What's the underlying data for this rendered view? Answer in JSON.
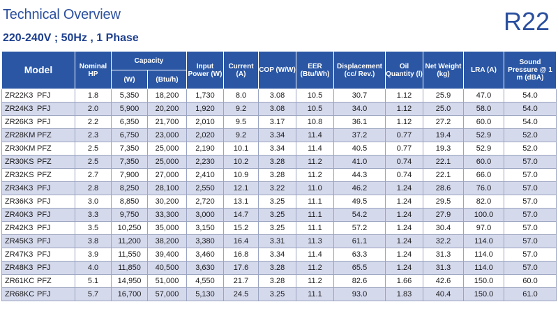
{
  "header": {
    "title": "Technical Overview",
    "subtitle": "220-240V ; 50Hz , 1 Phase",
    "badge": "R22"
  },
  "table": {
    "columns": {
      "model": "Model",
      "hp": "Nominal HP",
      "capacity": "Capacity",
      "capacity_w": "(W)",
      "capacity_btu": "(Btu/h)",
      "input_power": "Input Power (W)",
      "current": "Current (A)",
      "cop": "COP (W/W)",
      "eer": "EER (Btu/Wh)",
      "displacement": "Displacement (cc/ Rev.)",
      "oil": "Oil Quantity (l)",
      "weight": "Net Weight (kg)",
      "lra": "LRA (A)",
      "sound": "Sound Pressure @ 1 m (dBA)"
    },
    "rows": [
      {
        "model": "ZR22K3",
        "suffix": "PFJ",
        "hp": "1.8",
        "cap_w": "5,350",
        "cap_btu": "18,200",
        "power": "1,730",
        "current": "8.0",
        "cop": "3.08",
        "eer": "10.5",
        "disp": "30.7",
        "oil": "1.12",
        "weight": "25.9",
        "lra": "47.0",
        "sound": "54.0"
      },
      {
        "model": "ZR24K3",
        "suffix": "PFJ",
        "hp": "2.0",
        "cap_w": "5,900",
        "cap_btu": "20,200",
        "power": "1,920",
        "current": "9.2",
        "cop": "3.08",
        "eer": "10.5",
        "disp": "34.0",
        "oil": "1.12",
        "weight": "25.0",
        "lra": "58.0",
        "sound": "54.0"
      },
      {
        "model": "ZR26K3",
        "suffix": "PFJ",
        "hp": "2.2",
        "cap_w": "6,350",
        "cap_btu": "21,700",
        "power": "2,010",
        "current": "9.5",
        "cop": "3.17",
        "eer": "10.8",
        "disp": "36.1",
        "oil": "1.12",
        "weight": "27.2",
        "lra": "60.0",
        "sound": "54.0"
      },
      {
        "model": "ZR28KM",
        "suffix": "PFZ",
        "hp": "2.3",
        "cap_w": "6,750",
        "cap_btu": "23,000",
        "power": "2,020",
        "current": "9.2",
        "cop": "3.34",
        "eer": "11.4",
        "disp": "37.2",
        "oil": "0.77",
        "weight": "19.4",
        "lra": "52.9",
        "sound": "52.0"
      },
      {
        "model": "ZR30KM",
        "suffix": "PFZ",
        "hp": "2.5",
        "cap_w": "7,350",
        "cap_btu": "25,000",
        "power": "2,190",
        "current": "10.1",
        "cop": "3.34",
        "eer": "11.4",
        "disp": "40.5",
        "oil": "0.77",
        "weight": "19.3",
        "lra": "52.9",
        "sound": "52.0"
      },
      {
        "model": "ZR30KS",
        "suffix": "PFZ",
        "hp": "2.5",
        "cap_w": "7,350",
        "cap_btu": "25,000",
        "power": "2,230",
        "current": "10.2",
        "cop": "3.28",
        "eer": "11.2",
        "disp": "41.0",
        "oil": "0.74",
        "weight": "22.1",
        "lra": "60.0",
        "sound": "57.0"
      },
      {
        "model": "ZR32KS",
        "suffix": "PFZ",
        "hp": "2.7",
        "cap_w": "7,900",
        "cap_btu": "27,000",
        "power": "2,410",
        "current": "10.9",
        "cop": "3.28",
        "eer": "11.2",
        "disp": "44.3",
        "oil": "0.74",
        "weight": "22.1",
        "lra": "66.0",
        "sound": "57.0"
      },
      {
        "model": "ZR34K3",
        "suffix": "PFJ",
        "hp": "2.8",
        "cap_w": "8,250",
        "cap_btu": "28,100",
        "power": "2,550",
        "current": "12.1",
        "cop": "3.22",
        "eer": "11.0",
        "disp": "46.2",
        "oil": "1.24",
        "weight": "28.6",
        "lra": "76.0",
        "sound": "57.0"
      },
      {
        "model": "ZR36K3",
        "suffix": "PFJ",
        "hp": "3.0",
        "cap_w": "8,850",
        "cap_btu": "30,200",
        "power": "2,720",
        "current": "13.1",
        "cop": "3.25",
        "eer": "11.1",
        "disp": "49.5",
        "oil": "1.24",
        "weight": "29.5",
        "lra": "82.0",
        "sound": "57.0"
      },
      {
        "model": "ZR40K3",
        "suffix": "PFJ",
        "hp": "3.3",
        "cap_w": "9,750",
        "cap_btu": "33,300",
        "power": "3,000",
        "current": "14.7",
        "cop": "3.25",
        "eer": "11.1",
        "disp": "54.2",
        "oil": "1.24",
        "weight": "27.9",
        "lra": "100.0",
        "sound": "57.0"
      },
      {
        "model": "ZR42K3",
        "suffix": "PFJ",
        "hp": "3.5",
        "cap_w": "10,250",
        "cap_btu": "35,000",
        "power": "3,150",
        "current": "15.2",
        "cop": "3.25",
        "eer": "11.1",
        "disp": "57.2",
        "oil": "1.24",
        "weight": "30.4",
        "lra": "97.0",
        "sound": "57.0"
      },
      {
        "model": "ZR45K3",
        "suffix": "PFJ",
        "hp": "3.8",
        "cap_w": "11,200",
        "cap_btu": "38,200",
        "power": "3,380",
        "current": "16.4",
        "cop": "3.31",
        "eer": "11.3",
        "disp": "61.1",
        "oil": "1.24",
        "weight": "32.2",
        "lra": "114.0",
        "sound": "57.0"
      },
      {
        "model": "ZR47K3",
        "suffix": "PFJ",
        "hp": "3.9",
        "cap_w": "11,550",
        "cap_btu": "39,400",
        "power": "3,460",
        "current": "16.8",
        "cop": "3.34",
        "eer": "11.4",
        "disp": "63.3",
        "oil": "1.24",
        "weight": "31.3",
        "lra": "114.0",
        "sound": "57.0"
      },
      {
        "model": "ZR48K3",
        "suffix": "PFJ",
        "hp": "4.0",
        "cap_w": "11,850",
        "cap_btu": "40,500",
        "power": "3,630",
        "current": "17.6",
        "cop": "3.28",
        "eer": "11.2",
        "disp": "65.5",
        "oil": "1.24",
        "weight": "31.3",
        "lra": "114.0",
        "sound": "57.0"
      },
      {
        "model": "ZR61KC",
        "suffix": "PFZ",
        "hp": "5.1",
        "cap_w": "14,950",
        "cap_btu": "51,000",
        "power": "4,550",
        "current": "21.7",
        "cop": "3.28",
        "eer": "11.2",
        "disp": "82.6",
        "oil": "1.66",
        "weight": "42.6",
        "lra": "150.0",
        "sound": "60.0"
      },
      {
        "model": "ZR68KC",
        "suffix": "PFJ",
        "hp": "5.7",
        "cap_w": "16,700",
        "cap_btu": "57,000",
        "power": "5,130",
        "current": "24.5",
        "cop": "3.25",
        "eer": "11.1",
        "disp": "93.0",
        "oil": "1.83",
        "weight": "40.4",
        "lra": "150.0",
        "sound": "61.0"
      }
    ]
  }
}
